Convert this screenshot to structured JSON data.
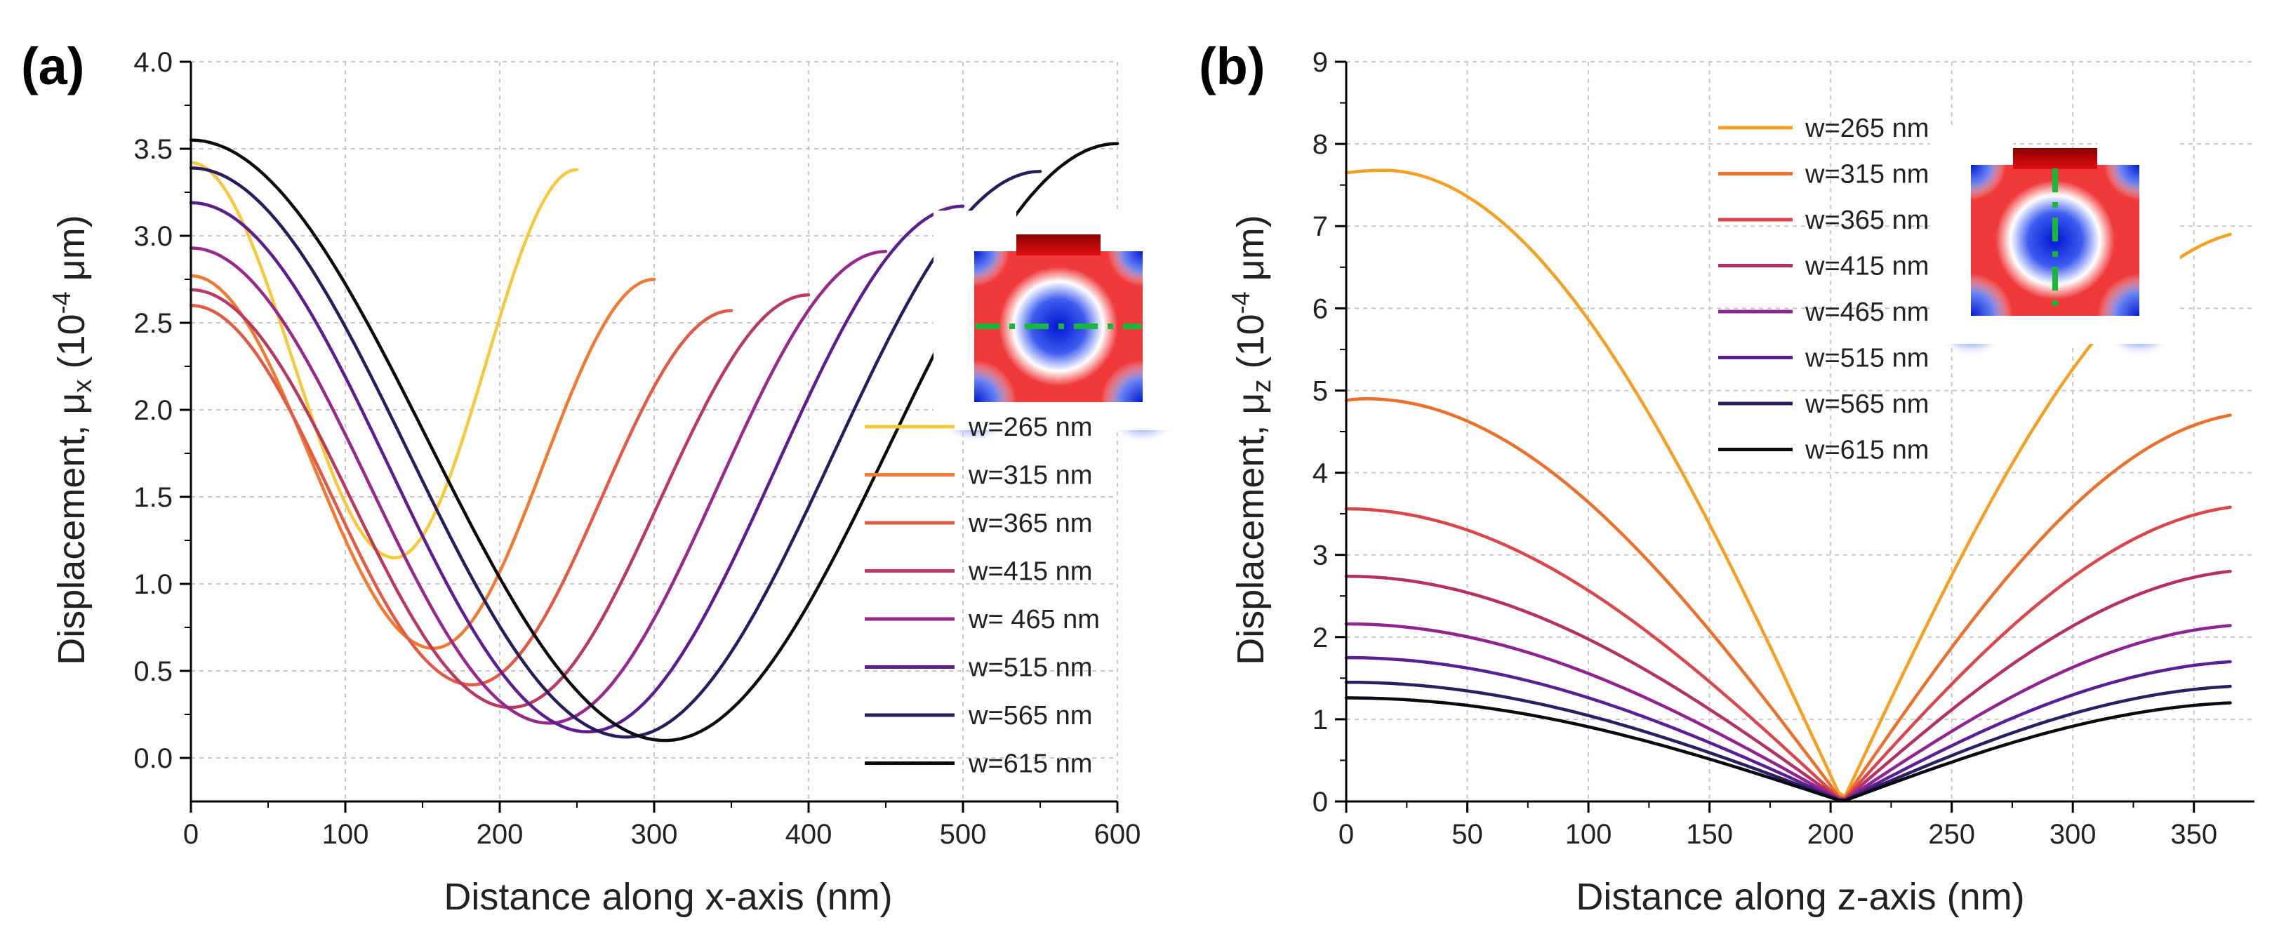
{
  "chart_data": [
    {
      "panel": "(a)",
      "type": "line",
      "xlabel": "Distance along x-axis (nm)",
      "ylabel_main": "Displacement, μ",
      "ylabel_sub": "x",
      "ylabel_unit_pre": " (10",
      "ylabel_exp": "-4",
      "ylabel_unit_post": " μm)",
      "xlim": [
        0,
        600
      ],
      "ylim": [
        -0.25,
        4.0
      ],
      "xticks": [
        0,
        100,
        200,
        300,
        400,
        500,
        600
      ],
      "yticks": [
        0.0,
        0.5,
        1.0,
        1.5,
        2.0,
        2.5,
        3.0,
        3.5,
        4.0
      ],
      "ytick_labels": [
        "0.0",
        "0.5",
        "1.0",
        "1.5",
        "2.0",
        "2.5",
        "3.0",
        "3.5",
        "4.0"
      ],
      "legend_position": "right",
      "series": [
        {
          "name": "w=265 nm",
          "color": "#f7c93a",
          "x_end": 250,
          "y_start": 3.42,
          "x_min": 132,
          "y_min": 1.15,
          "y_end": 3.38
        },
        {
          "name": "w=315 nm",
          "color": "#f07a32",
          "x_end": 300,
          "y_start": 2.77,
          "x_min": 157,
          "y_min": 0.63,
          "y_end": 2.75
        },
        {
          "name": "w=365 nm",
          "color": "#e05a45",
          "x_end": 350,
          "y_start": 2.6,
          "x_min": 182,
          "y_min": 0.42,
          "y_end": 2.57
        },
        {
          "name": "w=415 nm",
          "color": "#b93a5e",
          "x_end": 400,
          "y_start": 2.69,
          "x_min": 207,
          "y_min": 0.29,
          "y_end": 2.66
        },
        {
          "name": "w= 465 nm",
          "color": "#97298c",
          "x_end": 450,
          "y_start": 2.93,
          "x_min": 232,
          "y_min": 0.2,
          "y_end": 2.91
        },
        {
          "name": "w=515 nm",
          "color": "#5c1d8f",
          "x_end": 500,
          "y_start": 3.19,
          "x_min": 257,
          "y_min": 0.15,
          "y_end": 3.17
        },
        {
          "name": "w=565 nm",
          "color": "#281c5c",
          "x_end": 550,
          "y_start": 3.39,
          "x_min": 282,
          "y_min": 0.12,
          "y_end": 3.37
        },
        {
          "name": "w=615 nm",
          "color": "#0c0a10",
          "x_end": 600,
          "y_start": 3.55,
          "x_min": 307,
          "y_min": 0.1,
          "y_end": 3.53
        }
      ],
      "inset": "mode-profile-x-cut"
    },
    {
      "panel": "(b)",
      "type": "line",
      "xlabel": "Distance along z-axis (nm)",
      "ylabel_main": "Displacement, μ",
      "ylabel_sub": "z",
      "ylabel_unit_pre": " (10",
      "ylabel_exp": "-4",
      "ylabel_unit_post": " μm)",
      "xlim": [
        0,
        375
      ],
      "ylim": [
        0,
        9
      ],
      "xticks": [
        0,
        50,
        100,
        150,
        200,
        250,
        300,
        350
      ],
      "yticks": [
        0,
        1,
        2,
        3,
        4,
        5,
        6,
        7,
        8,
        9
      ],
      "ytick_labels": [
        "0",
        "1",
        "2",
        "3",
        "4",
        "5",
        "6",
        "7",
        "8",
        "9"
      ],
      "legend_position": "top-center",
      "series": [
        {
          "name": "w=265 nm",
          "color": "#f5a023",
          "y_start": 7.65,
          "x_peak": 15,
          "y_peak": 7.68,
          "x_zero": 205,
          "y_end": 6.9
        },
        {
          "name": "w=315 nm",
          "color": "#ec6f2c",
          "y_start": 4.88,
          "x_peak": 8,
          "y_peak": 4.9,
          "x_zero": 205,
          "y_end": 4.7
        },
        {
          "name": "w=365 nm",
          "color": "#d9474c",
          "y_start": 3.56,
          "x_peak": 0,
          "y_peak": 3.56,
          "x_zero": 205,
          "y_end": 3.58
        },
        {
          "name": "w=415 nm",
          "color": "#b53063",
          "y_start": 2.74,
          "x_peak": 0,
          "y_peak": 2.74,
          "x_zero": 205,
          "y_end": 2.8
        },
        {
          "name": "w=465 nm",
          "color": "#8f2490",
          "y_start": 2.16,
          "x_peak": 0,
          "y_peak": 2.16,
          "x_zero": 205,
          "y_end": 2.14
        },
        {
          "name": "w=515 nm",
          "color": "#5a1f96",
          "y_start": 1.75,
          "x_peak": 0,
          "y_peak": 1.75,
          "x_zero": 205,
          "y_end": 1.7
        },
        {
          "name": "w=565 nm",
          "color": "#2c1e60",
          "y_start": 1.45,
          "x_peak": 0,
          "y_peak": 1.45,
          "x_zero": 205,
          "y_end": 1.4
        },
        {
          "name": "w=615 nm",
          "color": "#0c0a10",
          "y_start": 1.26,
          "x_peak": 0,
          "y_peak": 1.26,
          "x_zero": 205,
          "y_end": 1.2
        }
      ],
      "x_end": 365,
      "inset": "mode-profile-z-cut"
    }
  ]
}
